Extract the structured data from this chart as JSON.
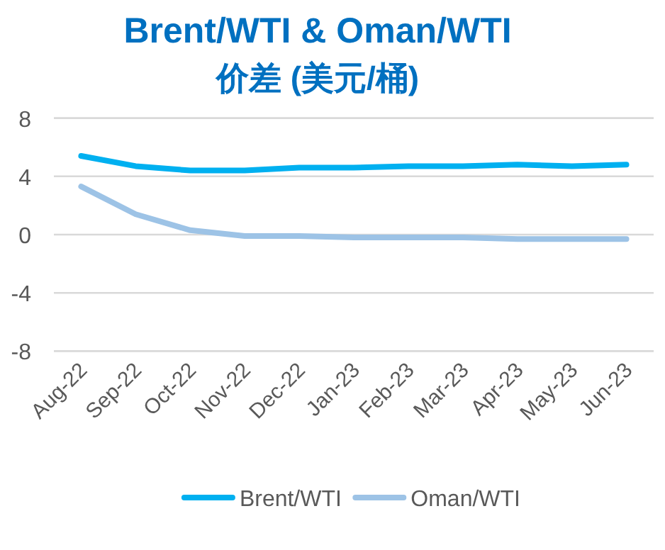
{
  "chart_data": {
    "type": "line",
    "title": "Brent/WTI & Oman/WTI",
    "subtitle": "价差 (美元/桶)",
    "categories": [
      "Aug-22",
      "Sep-22",
      "Oct-22",
      "Nov-22",
      "Dec-22",
      "Jan-23",
      "Feb-23",
      "Mar-23",
      "Apr-23",
      "May-23",
      "Jun-23"
    ],
    "series": [
      {
        "name": "Brent/WTI",
        "color": "#00b0f0",
        "values": [
          5.4,
          4.7,
          4.4,
          4.4,
          4.6,
          4.6,
          4.7,
          4.7,
          4.8,
          4.7,
          4.8
        ]
      },
      {
        "name": "Oman/WTI",
        "color": "#9dc3e6",
        "values": [
          3.3,
          1.4,
          0.3,
          -0.1,
          -0.1,
          -0.2,
          -0.2,
          -0.2,
          -0.3,
          -0.3,
          -0.3
        ]
      }
    ],
    "ylim": [
      -8,
      8
    ],
    "yticks": [
      -8,
      -4,
      0,
      4,
      8
    ],
    "grid": "y",
    "legend": "bottom",
    "marker": "none",
    "line_style": "solid"
  }
}
